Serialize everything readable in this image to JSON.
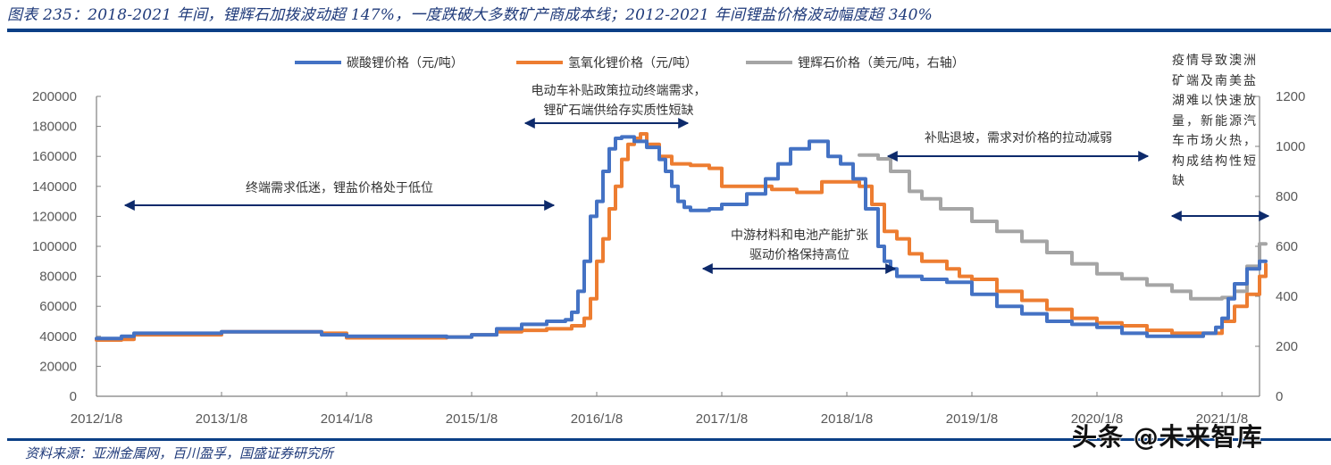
{
  "header": {
    "title": "图表 235：2018-2021 年间，锂辉石加拨波动超 147%，一度跌破大多数矿产商成本线；2012-2021 年间锂盐价格波动幅度超 340%"
  },
  "footer": {
    "source": "资料来源：亚洲金属网，百川盈孚，国盛证券研究所",
    "watermark": "头条 @未来智库"
  },
  "colors": {
    "li2co3": "#4472c4",
    "lioh": "#ed7d31",
    "spodumene": "#a5a5a5",
    "arrow": "#0d2a6b",
    "rule": "#0b3f86"
  },
  "legend": [
    {
      "label": "碳酸锂价格（元/吨）",
      "color": "#4472c4"
    },
    {
      "label": "氢氧化锂价格（元/吨）",
      "color": "#ed7d31"
    },
    {
      "label": "锂辉石价格（美元/吨，右轴）",
      "color": "#a5a5a5"
    }
  ],
  "annotations": {
    "a1": "终端需求低迷，锂盐价格处于低位",
    "a2_line1": "电动车补贴政策拉动终端需求，",
    "a2_line2": "锂矿石端供给存实质性短缺",
    "a3_line1": "中游材料和电池产能扩张",
    "a3_line2": "驱动价格保持高位",
    "a4": "补贴退坡，需求对价格的拉动减弱",
    "a5": "疫情导致澳洲矿端及南美盐湖难以快速放量，新能源汽车市场火热，构成结构性短缺"
  },
  "chart_data": {
    "type": "line",
    "title": "2018-2021 年间，锂辉石加拨波动超 147%，一度跌破大多数矿产商成本线；2012-2021 年间锂盐价格波动幅度超 340%",
    "xlabel": "",
    "ylabel": "元/吨",
    "y2label": "美元/吨",
    "ylim": [
      0,
      200000
    ],
    "y2lim": [
      0,
      1200
    ],
    "yticks": [
      "200000",
      "180000",
      "160000",
      "140000",
      "120000",
      "100000",
      "80000",
      "60000",
      "40000",
      "20000",
      "0"
    ],
    "y2ticks": [
      "1200",
      "1000",
      "800",
      "600",
      "400",
      "200",
      "0"
    ],
    "xticks": [
      "2012/1/8",
      "2013/1/8",
      "2014/1/8",
      "2015/1/8",
      "2016/1/8",
      "2017/1/8",
      "2018/1/8",
      "2019/1/8",
      "2020/1/8",
      "2021/1/8"
    ],
    "x_range": [
      2012.0,
      2021.35
    ],
    "grid": false,
    "legend_position": "top",
    "series": [
      {
        "name": "碳酸锂价格（元/吨）",
        "axis": "left",
        "x": [
          2012.0,
          2012.2,
          2012.3,
          2013.0,
          2013.5,
          2013.8,
          2014.0,
          2014.5,
          2014.8,
          2015.0,
          2015.2,
          2015.4,
          2015.6,
          2015.75,
          2015.8,
          2015.85,
          2015.9,
          2015.95,
          2016.0,
          2016.05,
          2016.1,
          2016.15,
          2016.2,
          2016.3,
          2016.4,
          2016.5,
          2016.55,
          2016.6,
          2016.65,
          2016.7,
          2016.75,
          2016.8,
          2016.9,
          2017.0,
          2017.2,
          2017.35,
          2017.45,
          2017.55,
          2017.7,
          2017.85,
          2017.95,
          2018.0,
          2018.05,
          2018.15,
          2018.25,
          2018.3,
          2018.35,
          2018.4,
          2018.5,
          2018.6,
          2018.8,
          2018.9,
          2019.0,
          2019.2,
          2019.4,
          2019.6,
          2019.8,
          2020.0,
          2020.2,
          2020.4,
          2020.55,
          2020.7,
          2020.85,
          2020.95,
          2021.0,
          2021.05,
          2021.1,
          2021.2,
          2021.3,
          2021.35
        ],
        "values": [
          38500,
          40000,
          42000,
          43000,
          43000,
          41000,
          40000,
          40000,
          39500,
          41000,
          45000,
          48000,
          50000,
          51000,
          56000,
          70000,
          90000,
          120000,
          130000,
          150000,
          165000,
          172000,
          173000,
          170000,
          166000,
          158000,
          150000,
          140000,
          130000,
          126000,
          124000,
          124000,
          125000,
          128000,
          135000,
          145000,
          155000,
          165000,
          170000,
          160000,
          155000,
          155000,
          145000,
          125000,
          100000,
          90000,
          85000,
          80000,
          80000,
          78000,
          76000,
          76000,
          68000,
          60000,
          55000,
          50000,
          48000,
          46000,
          42000,
          40000,
          40000,
          40000,
          42000,
          46000,
          52000,
          65000,
          75000,
          85000,
          90000,
          90000
        ]
      },
      {
        "name": "氢氧化锂价格（元/吨）",
        "axis": "left",
        "x": [
          2012.0,
          2012.2,
          2012.3,
          2013.0,
          2013.5,
          2013.8,
          2014.0,
          2014.5,
          2014.8,
          2015.0,
          2015.2,
          2015.4,
          2015.6,
          2015.8,
          2015.9,
          2015.95,
          2016.0,
          2016.05,
          2016.1,
          2016.15,
          2016.2,
          2016.25,
          2016.3,
          2016.35,
          2016.4,
          2016.5,
          2016.6,
          2016.75,
          2016.9,
          2017.0,
          2017.2,
          2017.4,
          2017.6,
          2017.8,
          2018.0,
          2018.1,
          2018.2,
          2018.3,
          2018.4,
          2018.5,
          2018.6,
          2018.8,
          2018.9,
          2019.0,
          2019.2,
          2019.4,
          2019.6,
          2019.8,
          2020.0,
          2020.2,
          2020.4,
          2020.6,
          2020.8,
          2020.95,
          2021.0,
          2021.1,
          2021.2,
          2021.3,
          2021.35
        ],
        "values": [
          37500,
          38000,
          41000,
          43000,
          43000,
          42000,
          39000,
          39000,
          39500,
          41000,
          43000,
          44000,
          45000,
          47000,
          52000,
          65000,
          90000,
          105000,
          125000,
          140000,
          158000,
          168000,
          172000,
          175000,
          168000,
          160000,
          155000,
          154000,
          152000,
          140000,
          140000,
          138000,
          136000,
          143000,
          143000,
          140000,
          128000,
          110000,
          105000,
          95000,
          90000,
          85000,
          80000,
          78000,
          70000,
          64000,
          58000,
          52000,
          49000,
          47000,
          44000,
          42000,
          42000,
          42000,
          50000,
          60000,
          68000,
          80000,
          88000
        ]
      },
      {
        "name": "锂辉石价格（美元/吨，右轴）",
        "axis": "right",
        "x": [
          2018.1,
          2018.2,
          2018.25,
          2018.35,
          2018.5,
          2018.6,
          2018.75,
          2019.0,
          2019.2,
          2019.4,
          2019.6,
          2019.8,
          2020.0,
          2020.2,
          2020.4,
          2020.6,
          2020.75,
          2020.9,
          2021.0,
          2021.1,
          2021.2,
          2021.3,
          2021.35
        ],
        "values": [
          965,
          965,
          950,
          900,
          820,
          790,
          750,
          700,
          660,
          620,
          575,
          530,
          490,
          470,
          445,
          420,
          390,
          390,
          395,
          420,
          520,
          610,
          610
        ]
      }
    ]
  }
}
